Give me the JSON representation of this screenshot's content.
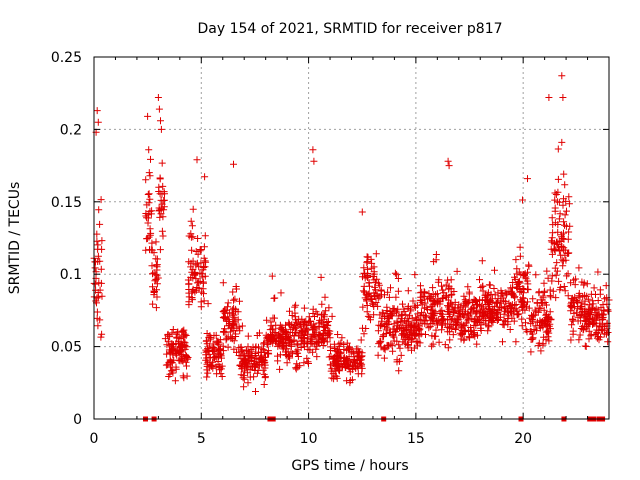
{
  "chart_data": {
    "type": "scatter",
    "title": "Day 154 of 2021, SRMTID for receiver p817",
    "xlabel": "GPS time / hours",
    "ylabel": "SRMTID / TECUs",
    "xlim": [
      0,
      24
    ],
    "ylim": [
      0,
      0.25
    ],
    "xticks": [
      0,
      5,
      10,
      15,
      20
    ],
    "xtick_labels": [
      "0",
      "5",
      "10",
      "15",
      "20"
    ],
    "yticks": [
      0,
      0.05,
      0.1,
      0.15,
      0.2,
      0.25
    ],
    "ytick_labels": [
      "0",
      "0.05",
      "0.1",
      "0.15",
      "0.2",
      "0.25"
    ],
    "grid": true,
    "marker": "+",
    "color": "#e00000",
    "zero_markers_x": [
      2.4,
      2.8,
      8.2,
      8.35,
      13.5,
      19.9,
      21.9,
      23.1,
      23.3,
      23.55,
      23.7
    ],
    "segments": [
      {
        "x0": 0.0,
        "x1": 0.4,
        "mean": 0.09,
        "spread": 0.055
      },
      {
        "x0": 2.4,
        "x1": 2.7,
        "mean": 0.14,
        "spread": 0.04
      },
      {
        "x0": 2.7,
        "x1": 3.0,
        "mean": 0.1,
        "spread": 0.03
      },
      {
        "x0": 3.0,
        "x1": 3.3,
        "mean": 0.15,
        "spread": 0.04
      },
      {
        "x0": 3.3,
        "x1": 4.4,
        "mean": 0.045,
        "spread": 0.02
      },
      {
        "x0": 4.4,
        "x1": 5.2,
        "mean": 0.1,
        "spread": 0.035
      },
      {
        "x0": 5.2,
        "x1": 6.0,
        "mean": 0.045,
        "spread": 0.018
      },
      {
        "x0": 6.0,
        "x1": 6.8,
        "mean": 0.065,
        "spread": 0.025
      },
      {
        "x0": 6.8,
        "x1": 8.0,
        "mean": 0.04,
        "spread": 0.018
      },
      {
        "x0": 8.0,
        "x1": 9.2,
        "mean": 0.055,
        "spread": 0.02
      },
      {
        "x0": 9.2,
        "x1": 10.2,
        "mean": 0.055,
        "spread": 0.022
      },
      {
        "x0": 10.2,
        "x1": 11.0,
        "mean": 0.06,
        "spread": 0.02
      },
      {
        "x0": 11.0,
        "x1": 12.5,
        "mean": 0.04,
        "spread": 0.015
      },
      {
        "x0": 12.5,
        "x1": 13.2,
        "mean": 0.09,
        "spread": 0.03
      },
      {
        "x0": 13.2,
        "x1": 14.2,
        "mean": 0.065,
        "spread": 0.03
      },
      {
        "x0": 14.2,
        "x1": 15.2,
        "mean": 0.06,
        "spread": 0.02
      },
      {
        "x0": 15.2,
        "x1": 16.8,
        "mean": 0.075,
        "spread": 0.025
      },
      {
        "x0": 16.8,
        "x1": 18.0,
        "mean": 0.07,
        "spread": 0.02
      },
      {
        "x0": 18.0,
        "x1": 19.5,
        "mean": 0.075,
        "spread": 0.02
      },
      {
        "x0": 19.5,
        "x1": 20.3,
        "mean": 0.085,
        "spread": 0.03
      },
      {
        "x0": 20.3,
        "x1": 21.3,
        "mean": 0.07,
        "spread": 0.025
      },
      {
        "x0": 21.3,
        "x1": 22.2,
        "mean": 0.12,
        "spread": 0.045
      },
      {
        "x0": 22.2,
        "x1": 23.0,
        "mean": 0.075,
        "spread": 0.025
      },
      {
        "x0": 23.0,
        "x1": 24.0,
        "mean": 0.07,
        "spread": 0.02
      }
    ],
    "peaks": [
      {
        "x": 0.15,
        "y": 0.213
      },
      {
        "x": 0.2,
        "y": 0.205
      },
      {
        "x": 0.1,
        "y": 0.198
      },
      {
        "x": 2.5,
        "y": 0.209
      },
      {
        "x": 2.55,
        "y": 0.186
      },
      {
        "x": 3.0,
        "y": 0.222
      },
      {
        "x": 3.05,
        "y": 0.214
      },
      {
        "x": 3.1,
        "y": 0.206
      },
      {
        "x": 4.8,
        "y": 0.179
      },
      {
        "x": 6.5,
        "y": 0.176
      },
      {
        "x": 10.2,
        "y": 0.186
      },
      {
        "x": 10.25,
        "y": 0.178
      },
      {
        "x": 16.5,
        "y": 0.178
      },
      {
        "x": 16.55,
        "y": 0.175
      },
      {
        "x": 20.2,
        "y": 0.166
      },
      {
        "x": 21.2,
        "y": 0.222
      },
      {
        "x": 21.8,
        "y": 0.237
      },
      {
        "x": 21.85,
        "y": 0.222
      },
      {
        "x": 21.8,
        "y": 0.191
      }
    ]
  }
}
